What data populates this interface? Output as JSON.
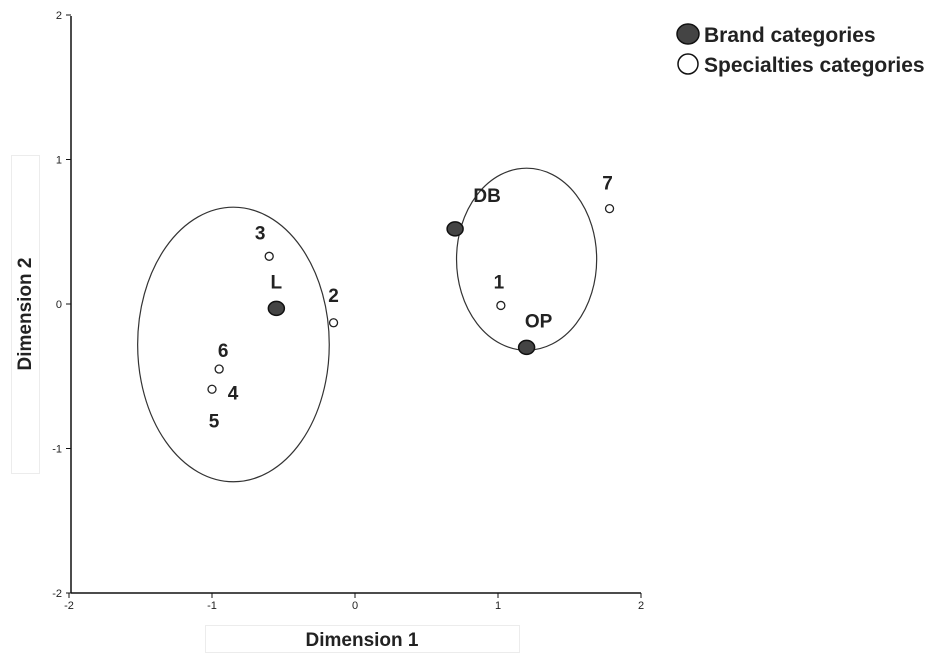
{
  "chart_data": {
    "type": "scatter",
    "xlabel": "Dimension 1",
    "ylabel": "Dimension 2",
    "xlim": [
      -2,
      2
    ],
    "ylim": [
      -2,
      2
    ],
    "xticks": [
      -2,
      -1,
      0,
      1,
      2
    ],
    "yticks": [
      -2,
      -1,
      0,
      1,
      2
    ],
    "grid": false,
    "legend_position": "top-right",
    "series": [
      {
        "name": "Brand categories",
        "marker": "filled",
        "color": "#444444",
        "points": [
          {
            "label": "DB",
            "x": 0.7,
            "y": 0.52
          },
          {
            "label": "L",
            "x": -0.55,
            "y": -0.03
          },
          {
            "label": "OP",
            "x": 1.2,
            "y": -0.3
          }
        ]
      },
      {
        "name": "Specialties categories",
        "marker": "open",
        "color": "#ffffff",
        "points": [
          {
            "label": "1",
            "x": 1.02,
            "y": -0.01
          },
          {
            "label": "2",
            "x": -0.15,
            "y": -0.13
          },
          {
            "label": "3",
            "x": -0.6,
            "y": 0.33
          },
          {
            "label": "4",
            "x": -1.0,
            "y": -0.59
          },
          {
            "label": "5",
            "x": -1.0,
            "y": -0.59
          },
          {
            "label": "6",
            "x": -0.95,
            "y": -0.45
          },
          {
            "label": "7",
            "x": 1.78,
            "y": 0.66
          }
        ]
      }
    ],
    "clusters": [
      {
        "cx": -0.85,
        "cy": -0.28,
        "rx": 0.67,
        "ry": 0.95
      },
      {
        "cx": 1.2,
        "cy": 0.31,
        "rx": 0.49,
        "ry": 0.63
      }
    ]
  }
}
